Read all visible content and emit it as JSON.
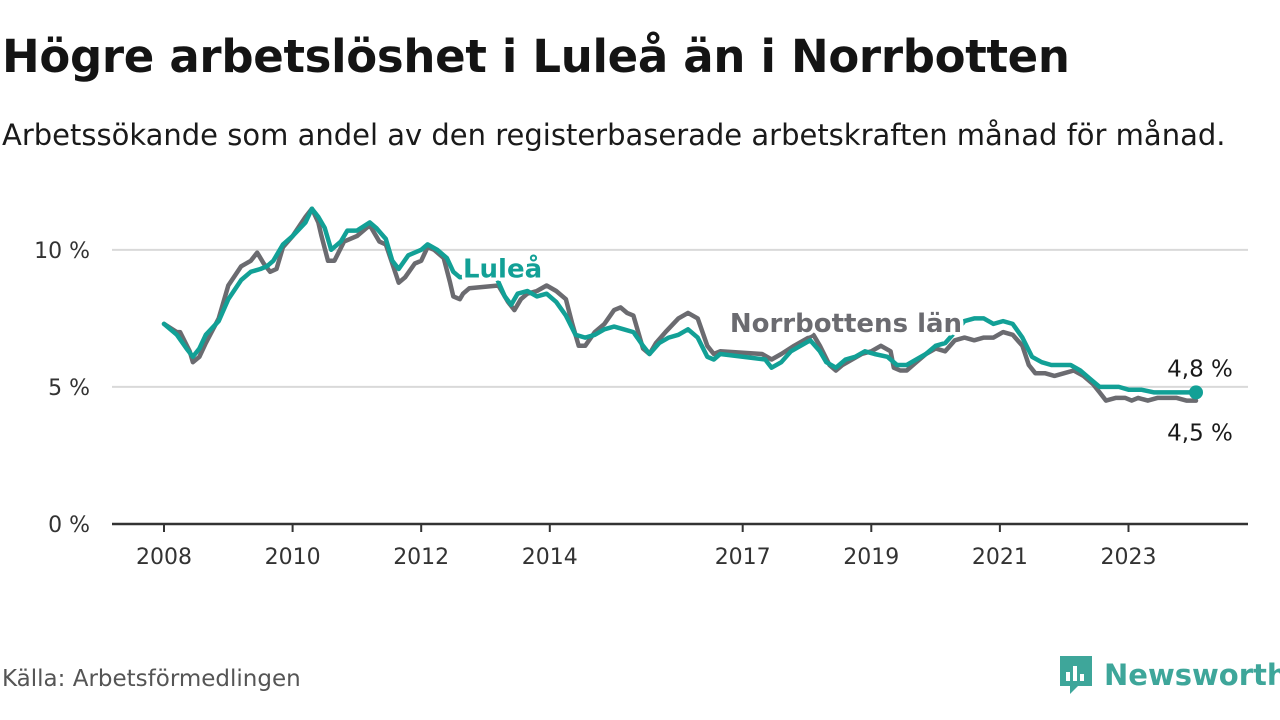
{
  "title": "Högre arbetslöshet i Luleå än i Norrbotten",
  "subtitle": "Arbetssökande som andel av den registerbaserade arbetskraften månad för månad.",
  "source": "Källa: Arbetsförmedlingen",
  "brand": {
    "name": "Newsworthy",
    "icon": "newsworthy-logo-icon",
    "color": "#3ea69a"
  },
  "chart_data": {
    "type": "line",
    "ylim": [
      0,
      12
    ],
    "xlim": [
      2008.0,
      2024.05
    ],
    "y_ticks": [
      {
        "value": 0,
        "label": "0 %"
      },
      {
        "value": 5,
        "label": "5 %"
      },
      {
        "value": 10,
        "label": "10 %"
      }
    ],
    "x_ticks": [
      {
        "value": 2008,
        "label": "2008"
      },
      {
        "value": 2010,
        "label": "2010"
      },
      {
        "value": 2012,
        "label": "2012"
      },
      {
        "value": 2014,
        "label": "2014"
      },
      {
        "value": 2017,
        "label": "2017"
      },
      {
        "value": 2019,
        "label": "2019"
      },
      {
        "value": 2021,
        "label": "2021"
      },
      {
        "value": 2023,
        "label": "2023"
      }
    ],
    "series": [
      {
        "name": "Norrbottens län",
        "label": "Norrbottens län",
        "color": "#6b6b70",
        "end_label": "4,5 %",
        "end_value": 4.5,
        "label_at": [
          2016.8,
          7.0
        ],
        "points": [
          [
            2008.0,
            7.3
          ],
          [
            2008.2,
            7.0
          ],
          [
            2008.25,
            7.0
          ],
          [
            2008.4,
            6.3
          ],
          [
            2008.45,
            5.9
          ],
          [
            2008.55,
            6.1
          ],
          [
            2008.65,
            6.6
          ],
          [
            2008.85,
            7.5
          ],
          [
            2009.0,
            8.7
          ],
          [
            2009.2,
            9.4
          ],
          [
            2009.35,
            9.6
          ],
          [
            2009.45,
            9.9
          ],
          [
            2009.55,
            9.5
          ],
          [
            2009.65,
            9.2
          ],
          [
            2009.75,
            9.3
          ],
          [
            2009.85,
            10.1
          ],
          [
            2010.0,
            10.5
          ],
          [
            2010.2,
            11.2
          ],
          [
            2010.3,
            11.5
          ],
          [
            2010.4,
            11.0
          ],
          [
            2010.45,
            10.5
          ],
          [
            2010.55,
            9.6
          ],
          [
            2010.65,
            9.6
          ],
          [
            2010.8,
            10.3
          ],
          [
            2011.0,
            10.5
          ],
          [
            2011.2,
            10.9
          ],
          [
            2011.35,
            10.3
          ],
          [
            2011.45,
            10.2
          ],
          [
            2011.55,
            9.5
          ],
          [
            2011.65,
            8.8
          ],
          [
            2011.75,
            9.0
          ],
          [
            2011.9,
            9.5
          ],
          [
            2012.0,
            9.6
          ],
          [
            2012.1,
            10.1
          ],
          [
            2012.2,
            10.0
          ],
          [
            2012.35,
            9.7
          ],
          [
            2012.45,
            8.8
          ],
          [
            2012.5,
            8.3
          ],
          [
            2012.6,
            8.2
          ],
          [
            2012.65,
            8.4
          ],
          [
            2012.75,
            8.6
          ],
          [
            2013.2,
            8.7
          ],
          [
            2013.35,
            8.1
          ],
          [
            2013.45,
            7.8
          ],
          [
            2013.55,
            8.2
          ],
          [
            2013.65,
            8.4
          ],
          [
            2013.8,
            8.5
          ],
          [
            2013.95,
            8.7
          ],
          [
            2014.1,
            8.5
          ],
          [
            2014.25,
            8.2
          ],
          [
            2014.35,
            7.3
          ],
          [
            2014.45,
            6.5
          ],
          [
            2014.55,
            6.5
          ],
          [
            2014.7,
            7.0
          ],
          [
            2014.85,
            7.3
          ],
          [
            2015.0,
            7.8
          ],
          [
            2015.1,
            7.9
          ],
          [
            2015.2,
            7.7
          ],
          [
            2015.3,
            7.6
          ],
          [
            2015.45,
            6.4
          ],
          [
            2015.55,
            6.2
          ],
          [
            2015.65,
            6.6
          ],
          [
            2015.8,
            7.0
          ],
          [
            2016.0,
            7.5
          ],
          [
            2016.15,
            7.7
          ],
          [
            2016.3,
            7.5
          ],
          [
            2016.45,
            6.5
          ],
          [
            2016.55,
            6.2
          ],
          [
            2016.65,
            6.3
          ],
          [
            2017.3,
            6.2
          ],
          [
            2017.45,
            6.0
          ],
          [
            2017.6,
            6.2
          ],
          [
            2017.8,
            6.5
          ],
          [
            2017.95,
            6.7
          ],
          [
            2018.1,
            6.9
          ],
          [
            2018.2,
            6.5
          ],
          [
            2018.35,
            5.8
          ],
          [
            2018.45,
            5.6
          ],
          [
            2018.55,
            5.8
          ],
          [
            2018.7,
            6.0
          ],
          [
            2018.85,
            6.2
          ],
          [
            2019.0,
            6.3
          ],
          [
            2019.15,
            6.5
          ],
          [
            2019.3,
            6.3
          ],
          [
            2019.35,
            5.7
          ],
          [
            2019.45,
            5.6
          ],
          [
            2019.55,
            5.6
          ],
          [
            2019.7,
            5.9
          ],
          [
            2019.85,
            6.2
          ],
          [
            2020.0,
            6.4
          ],
          [
            2020.15,
            6.3
          ],
          [
            2020.3,
            6.7
          ],
          [
            2020.45,
            6.8
          ],
          [
            2020.6,
            6.7
          ],
          [
            2020.75,
            6.8
          ],
          [
            2020.9,
            6.8
          ],
          [
            2021.05,
            7.0
          ],
          [
            2021.2,
            6.9
          ],
          [
            2021.35,
            6.5
          ],
          [
            2021.45,
            5.8
          ],
          [
            2021.55,
            5.5
          ],
          [
            2021.7,
            5.5
          ],
          [
            2021.85,
            5.4
          ],
          [
            2022.0,
            5.5
          ],
          [
            2022.15,
            5.6
          ],
          [
            2022.3,
            5.4
          ],
          [
            2022.45,
            5.1
          ],
          [
            2022.55,
            4.8
          ],
          [
            2022.65,
            4.5
          ],
          [
            2022.8,
            4.6
          ],
          [
            2022.95,
            4.6
          ],
          [
            2023.05,
            4.5
          ],
          [
            2023.15,
            4.6
          ],
          [
            2023.3,
            4.5
          ],
          [
            2023.45,
            4.6
          ],
          [
            2023.6,
            4.6
          ],
          [
            2023.75,
            4.6
          ],
          [
            2023.9,
            4.5
          ],
          [
            2024.05,
            4.5
          ]
        ]
      },
      {
        "name": "Luleå",
        "label": "Luleå",
        "color": "#12a096",
        "end_label": "4,8 %",
        "end_value": 4.8,
        "label_at": [
          2012.65,
          9.0
        ],
        "points": [
          [
            2008.0,
            7.3
          ],
          [
            2008.2,
            6.9
          ],
          [
            2008.35,
            6.4
          ],
          [
            2008.45,
            6.1
          ],
          [
            2008.55,
            6.4
          ],
          [
            2008.65,
            6.9
          ],
          [
            2008.85,
            7.4
          ],
          [
            2009.0,
            8.2
          ],
          [
            2009.2,
            8.9
          ],
          [
            2009.35,
            9.2
          ],
          [
            2009.5,
            9.3
          ],
          [
            2009.6,
            9.4
          ],
          [
            2009.7,
            9.6
          ],
          [
            2009.85,
            10.2
          ],
          [
            2010.0,
            10.5
          ],
          [
            2010.2,
            11.0
          ],
          [
            2010.3,
            11.5
          ],
          [
            2010.4,
            11.2
          ],
          [
            2010.5,
            10.8
          ],
          [
            2010.6,
            10.0
          ],
          [
            2010.75,
            10.3
          ],
          [
            2010.85,
            10.7
          ],
          [
            2011.0,
            10.7
          ],
          [
            2011.2,
            11.0
          ],
          [
            2011.3,
            10.8
          ],
          [
            2011.45,
            10.4
          ],
          [
            2011.55,
            9.6
          ],
          [
            2011.65,
            9.3
          ],
          [
            2011.8,
            9.8
          ],
          [
            2012.0,
            10.0
          ],
          [
            2012.1,
            10.2
          ],
          [
            2012.25,
            10.0
          ],
          [
            2012.4,
            9.7
          ],
          [
            2012.5,
            9.2
          ],
          [
            2012.6,
            9.0
          ],
          [
            2013.15,
            9.1
          ],
          [
            2013.3,
            8.3
          ],
          [
            2013.4,
            8.0
          ],
          [
            2013.5,
            8.4
          ],
          [
            2013.65,
            8.5
          ],
          [
            2013.8,
            8.3
          ],
          [
            2013.95,
            8.4
          ],
          [
            2014.1,
            8.1
          ],
          [
            2014.25,
            7.6
          ],
          [
            2014.4,
            6.9
          ],
          [
            2014.55,
            6.8
          ],
          [
            2014.7,
            6.9
          ],
          [
            2014.85,
            7.1
          ],
          [
            2015.0,
            7.2
          ],
          [
            2015.15,
            7.1
          ],
          [
            2015.3,
            7.0
          ],
          [
            2015.45,
            6.5
          ],
          [
            2015.55,
            6.2
          ],
          [
            2015.7,
            6.6
          ],
          [
            2015.85,
            6.8
          ],
          [
            2016.0,
            6.9
          ],
          [
            2016.15,
            7.1
          ],
          [
            2016.3,
            6.8
          ],
          [
            2016.45,
            6.1
          ],
          [
            2016.55,
            6.0
          ],
          [
            2016.65,
            6.2
          ],
          [
            2017.35,
            6.0
          ],
          [
            2017.45,
            5.7
          ],
          [
            2017.6,
            5.9
          ],
          [
            2017.75,
            6.3
          ],
          [
            2017.9,
            6.5
          ],
          [
            2018.05,
            6.7
          ],
          [
            2018.2,
            6.3
          ],
          [
            2018.3,
            5.9
          ],
          [
            2018.45,
            5.7
          ],
          [
            2018.6,
            6.0
          ],
          [
            2018.75,
            6.1
          ],
          [
            2018.9,
            6.3
          ],
          [
            2019.05,
            6.2
          ],
          [
            2019.25,
            6.1
          ],
          [
            2019.4,
            5.8
          ],
          [
            2019.55,
            5.8
          ],
          [
            2019.7,
            6.0
          ],
          [
            2019.85,
            6.2
          ],
          [
            2020.0,
            6.5
          ],
          [
            2020.15,
            6.6
          ],
          [
            2020.3,
            7.0
          ],
          [
            2020.45,
            7.4
          ],
          [
            2020.6,
            7.5
          ],
          [
            2020.75,
            7.5
          ],
          [
            2020.9,
            7.3
          ],
          [
            2021.05,
            7.4
          ],
          [
            2021.2,
            7.3
          ],
          [
            2021.35,
            6.8
          ],
          [
            2021.5,
            6.1
          ],
          [
            2021.65,
            5.9
          ],
          [
            2021.8,
            5.8
          ],
          [
            2021.95,
            5.8
          ],
          [
            2022.1,
            5.8
          ],
          [
            2022.25,
            5.6
          ],
          [
            2022.4,
            5.3
          ],
          [
            2022.55,
            5.0
          ],
          [
            2022.7,
            5.0
          ],
          [
            2022.85,
            5.0
          ],
          [
            2023.0,
            4.9
          ],
          [
            2023.2,
            4.9
          ],
          [
            2023.4,
            4.8
          ],
          [
            2023.6,
            4.8
          ],
          [
            2023.8,
            4.8
          ],
          [
            2024.05,
            4.8
          ]
        ]
      }
    ]
  }
}
